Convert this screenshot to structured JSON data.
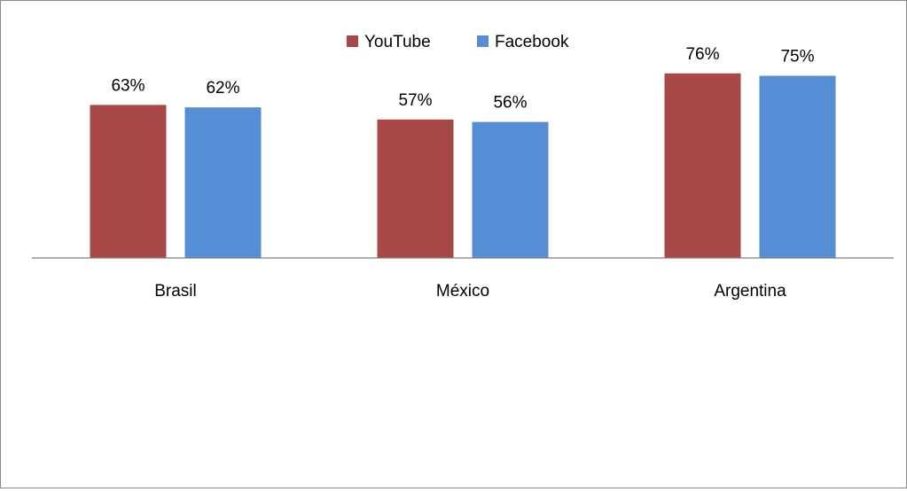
{
  "colors": {
    "background": "#ffffff",
    "border": "#888888",
    "axis": "#7f7f7f"
  },
  "chart_data": {
    "type": "bar",
    "categories": [
      "Brasil",
      "México",
      "Argentina"
    ],
    "series": [
      {
        "name": "YouTube",
        "color": "#a84846",
        "values": [
          63,
          57,
          76
        ]
      },
      {
        "name": "Facebook",
        "color": "#558ed5",
        "values": [
          62,
          56,
          75
        ]
      }
    ],
    "data_labels": [
      [
        "63%",
        "57%",
        "76%"
      ],
      [
        "62%",
        "56%",
        "75%"
      ]
    ],
    "value_unit": "%",
    "ylim": [
      0,
      90
    ],
    "legend_position": "top-center",
    "grid": false
  }
}
